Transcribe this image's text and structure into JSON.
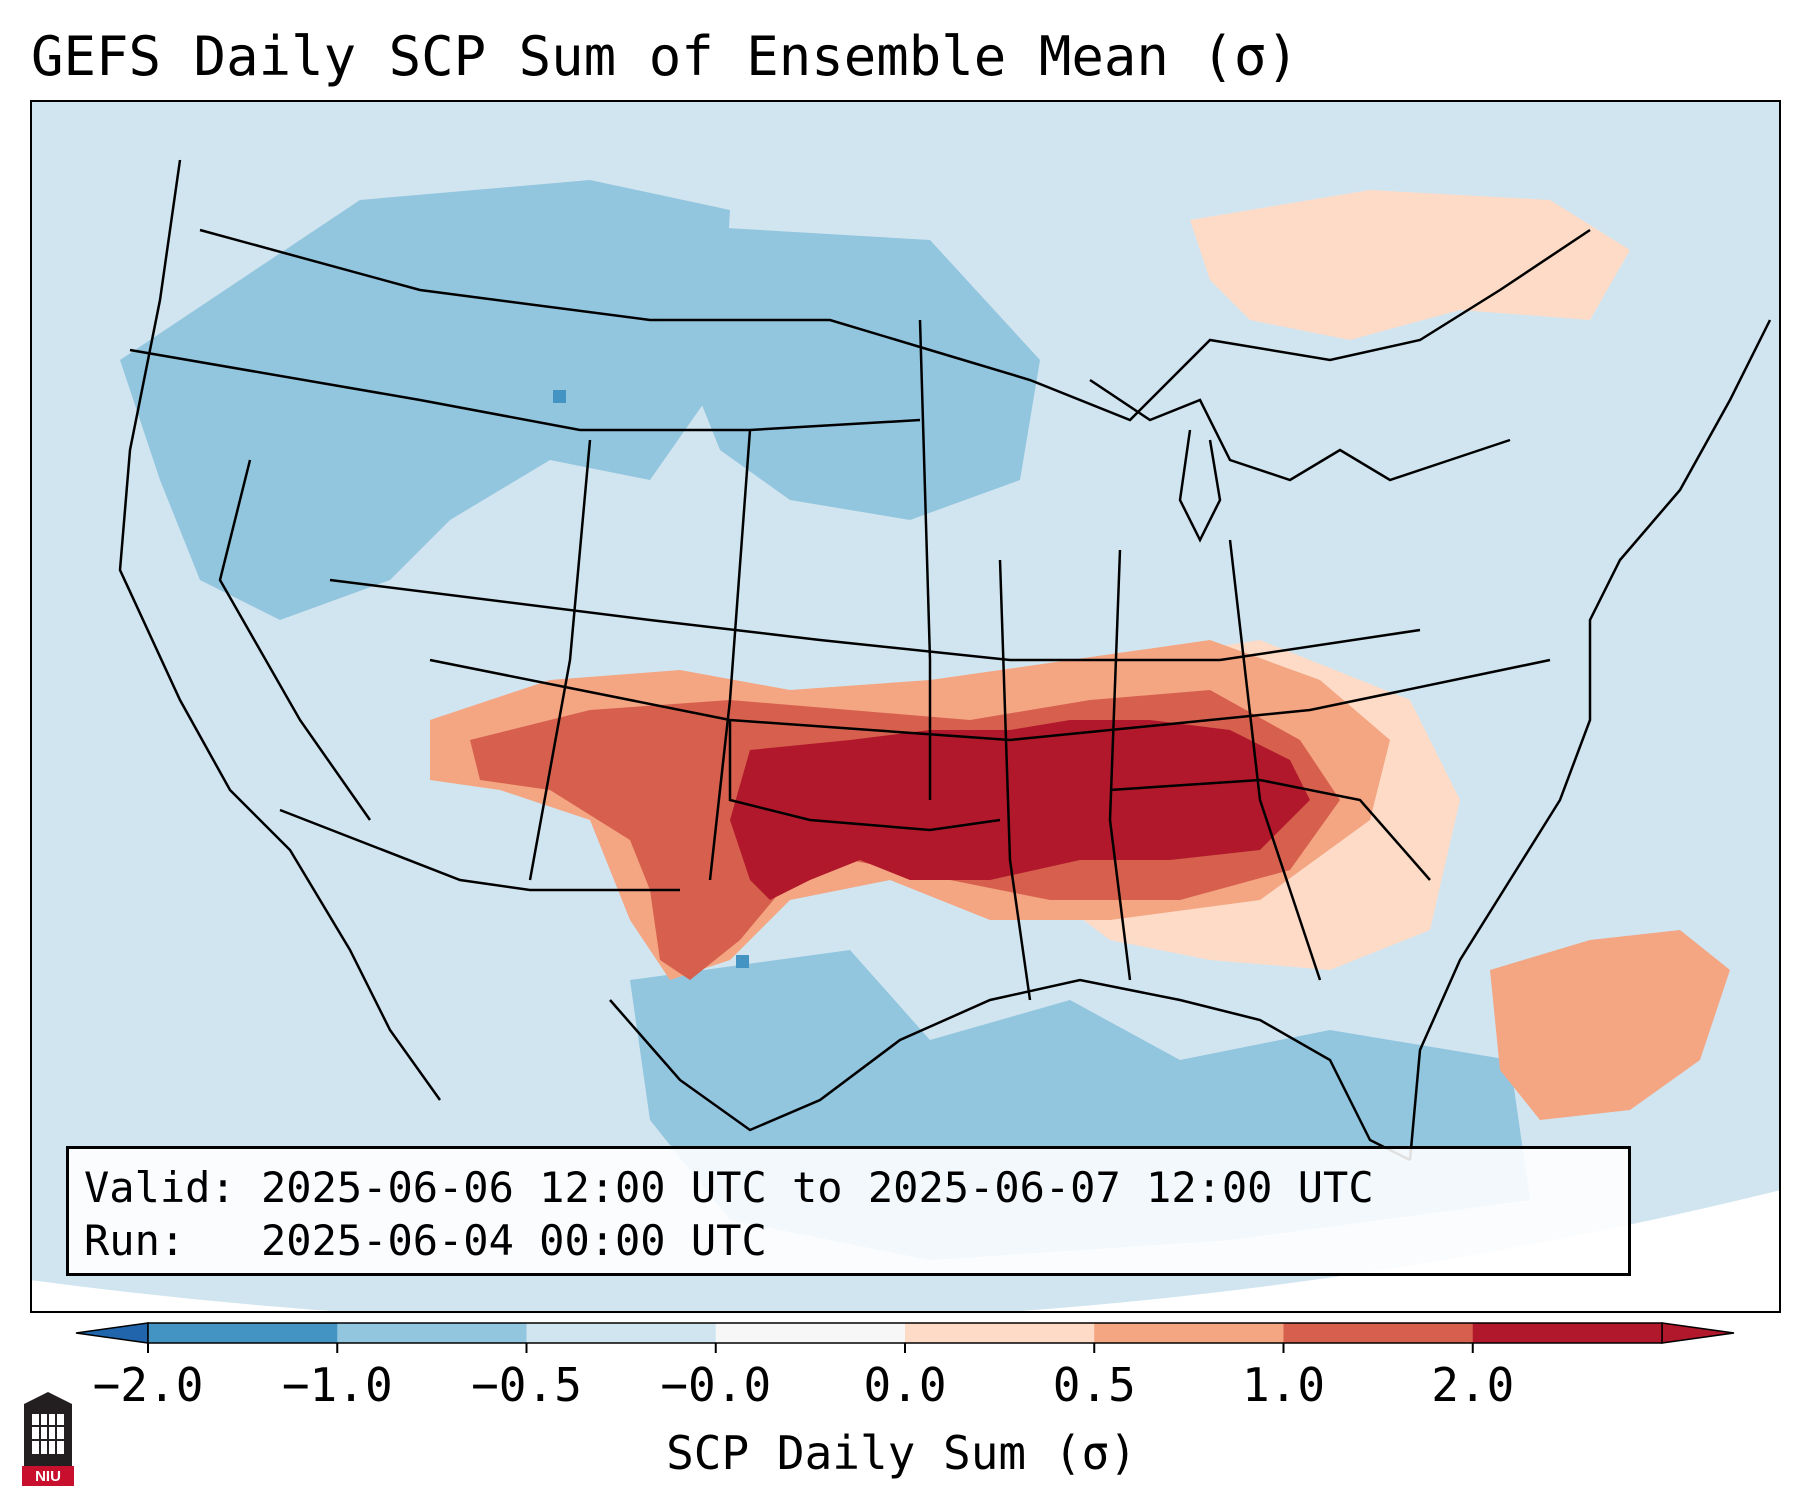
{
  "title": "GEFS Daily SCP Sum of Ensemble Mean (σ)",
  "info": {
    "valid_label": "Valid:",
    "valid_value": "2025-06-06 12:00 UTC to 2025-06-07 12:00 UTC",
    "run_label": "Run:",
    "run_value": "2025-06-04 00:00 UTC"
  },
  "colorbar": {
    "label": "SCP Daily Sum (σ)",
    "ticks": [
      "−2.0",
      "−1.0",
      "−0.5",
      "−0.0",
      "0.0",
      "0.5",
      "1.0",
      "2.0"
    ],
    "colors": [
      "#4393c3",
      "#92c5de",
      "#d1e5f0",
      "#f7f7f7",
      "#fddbc7",
      "#f4a582",
      "#d6604d",
      "#b2182b"
    ],
    "under_color": "#2166ac",
    "over_color": "#b2182b"
  },
  "map": {
    "background_color": "#d1e5f0",
    "regions": [
      {
        "name": "west-coast-low",
        "level": "#92c5de"
      },
      {
        "name": "northern-plains-low",
        "level": "#92c5de"
      },
      {
        "name": "plains-mid-south-maximum",
        "level": "#b2182b"
      },
      {
        "name": "southern-rockies-band",
        "level": "#d6604d"
      },
      {
        "name": "ohio-valley-band",
        "level": "#f4a582"
      },
      {
        "name": "southeast-fringe",
        "level": "#fddbc7"
      },
      {
        "name": "gulf-of-mexico-low",
        "level": "#92c5de"
      },
      {
        "name": "western-atlantic-high",
        "level": "#f4a582"
      },
      {
        "name": "great-lakes-canada-high",
        "level": "#fddbc7"
      }
    ]
  },
  "logo": {
    "text": "NIU",
    "color": "#c8102e"
  }
}
